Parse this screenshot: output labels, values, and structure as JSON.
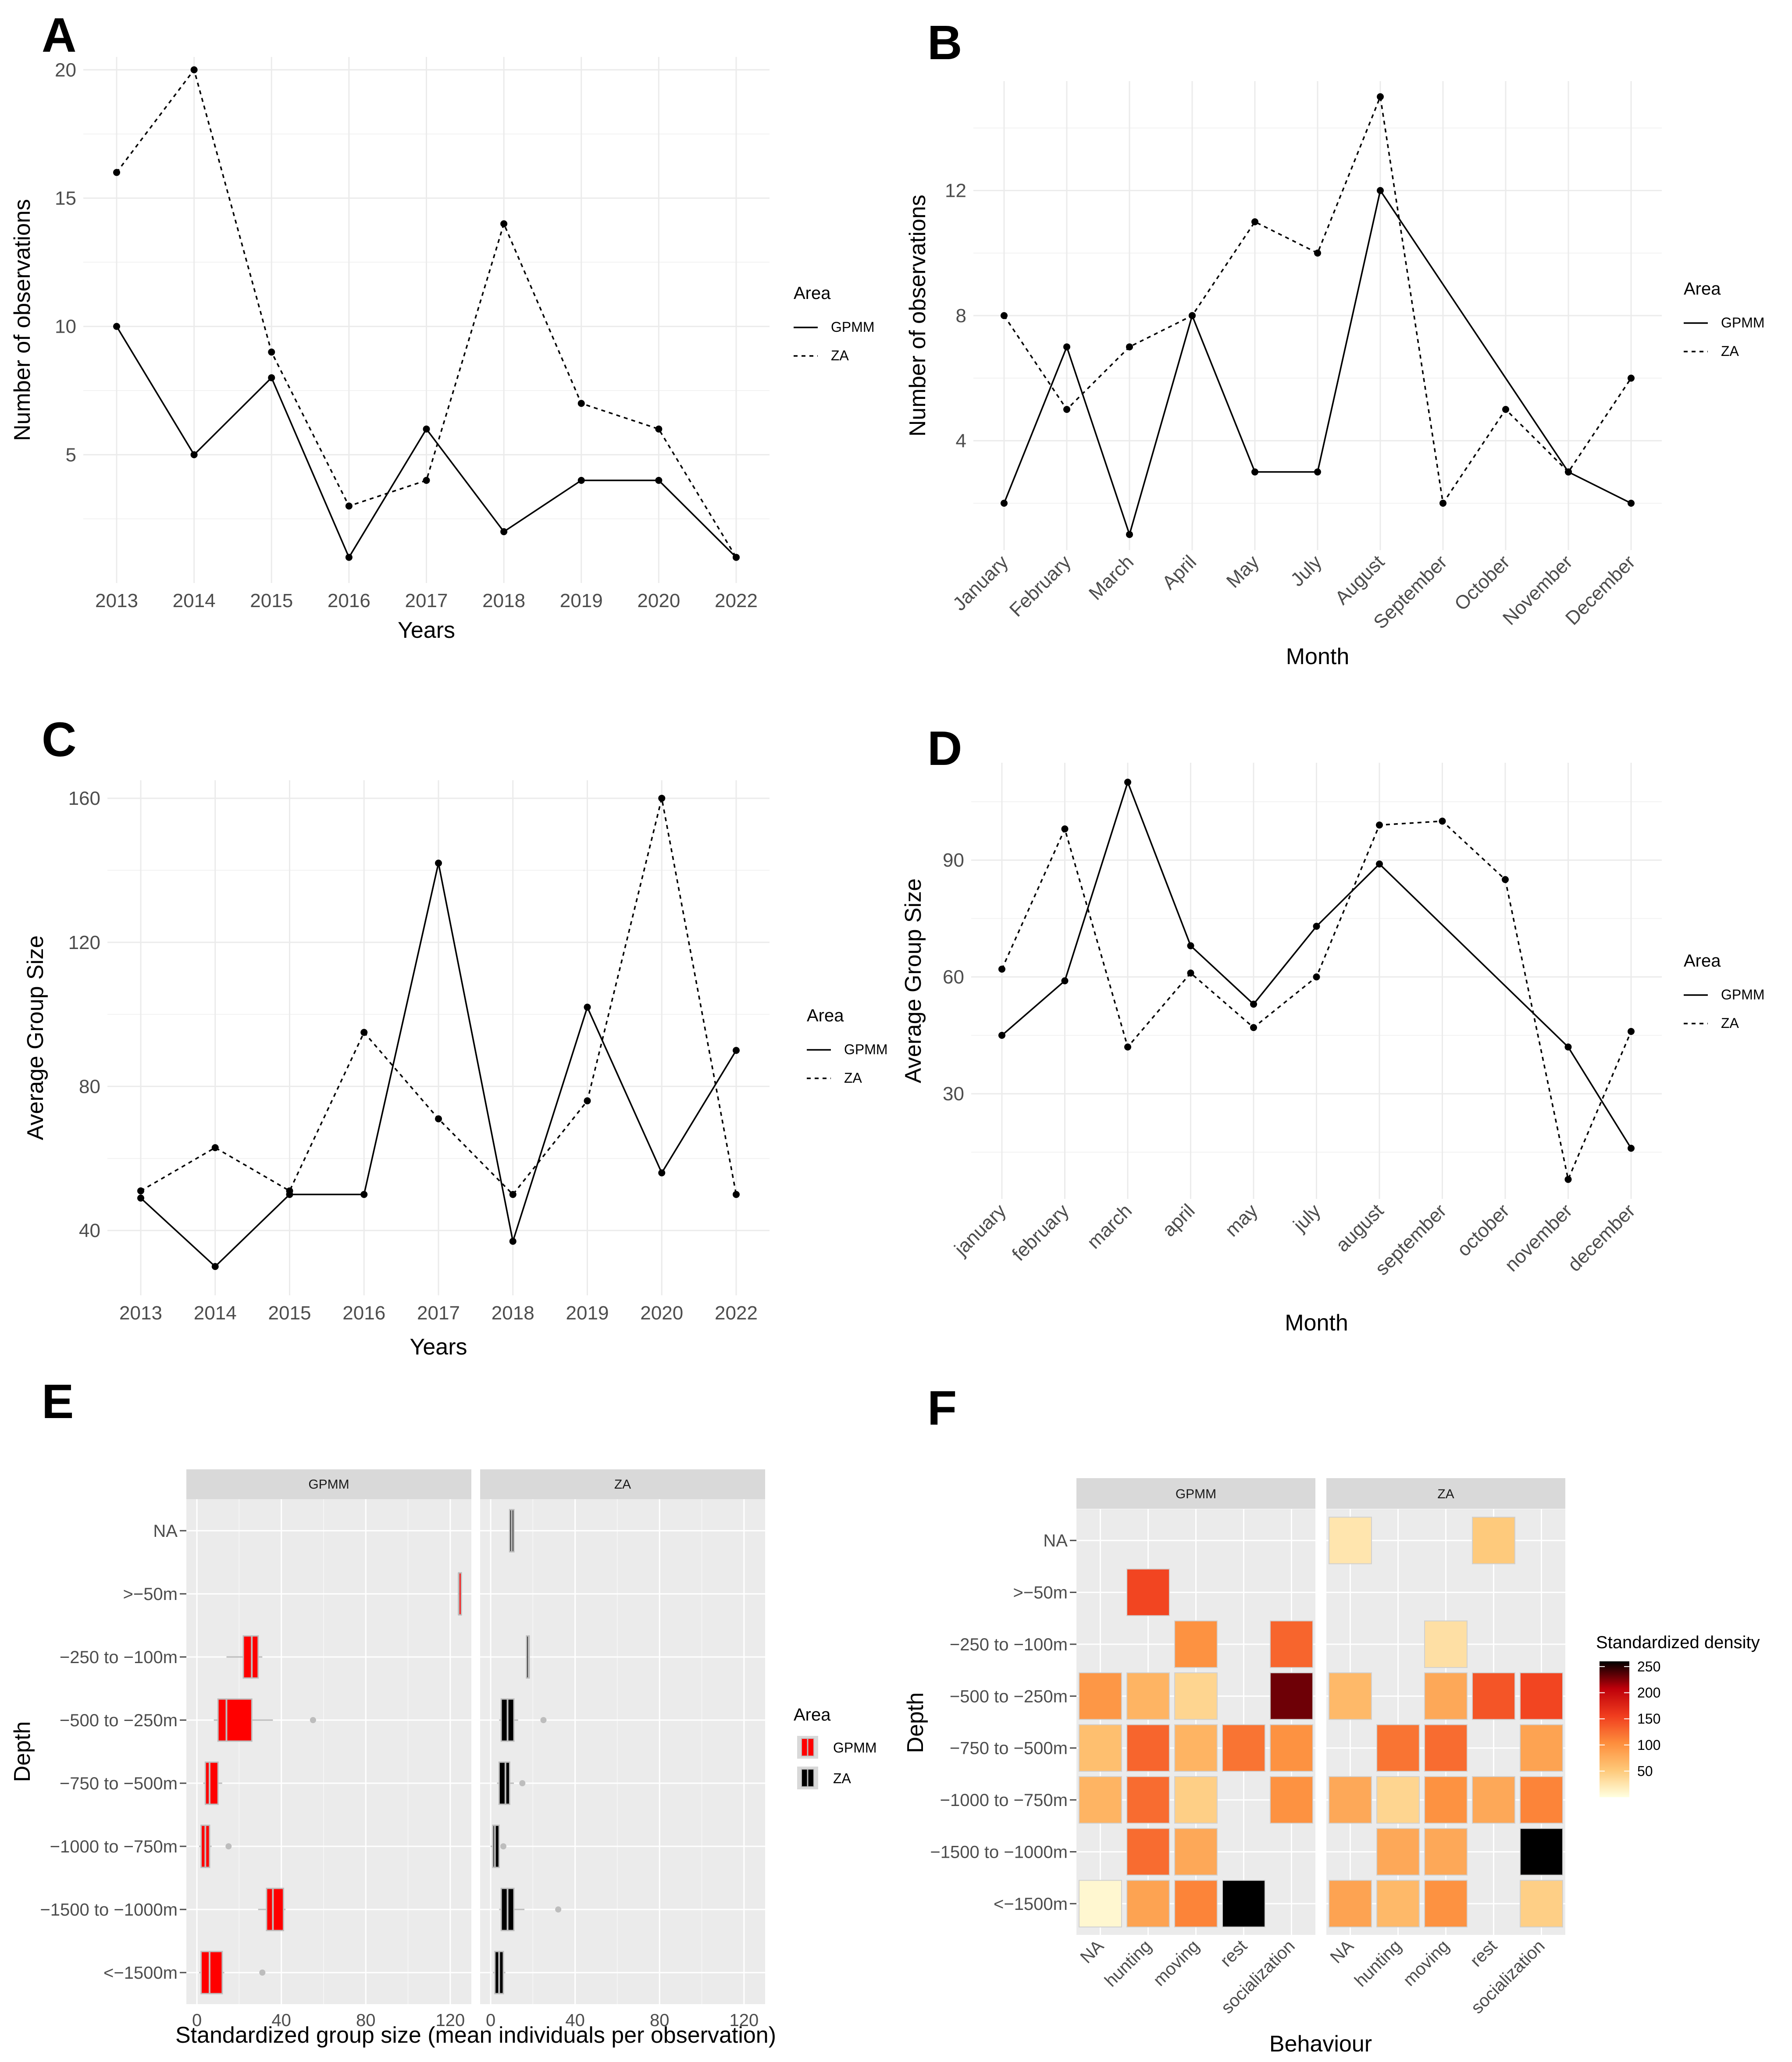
{
  "colors": {
    "gpmm_fill": "#ff0000",
    "za_fill": "#000000",
    "outlier": "#bdbdbd",
    "heat_low": "#fffde0",
    "heat_high": "#000000"
  },
  "chart_data": [
    {
      "panel": "A",
      "type": "line",
      "xlabel": "Years",
      "ylabel": "Number of observations",
      "categories": [
        "2013",
        "2014",
        "2015",
        "2016",
        "2017",
        "2018",
        "2019",
        "2020",
        "2022"
      ],
      "ylim": [
        0,
        20.5
      ],
      "yticks": [
        5,
        10,
        15,
        20
      ],
      "legend": {
        "title": "Area",
        "position": "right"
      },
      "series": [
        {
          "name": "GPMM",
          "line": "solid",
          "values": [
            10,
            5,
            8,
            1,
            6,
            2,
            4,
            4,
            1
          ]
        },
        {
          "name": "ZA",
          "line": "dashed",
          "values": [
            16,
            20,
            9,
            3,
            4,
            14,
            7,
            6,
            1
          ]
        }
      ]
    },
    {
      "panel": "B",
      "type": "line",
      "xlabel": "Month",
      "ylabel": "Number of observations",
      "categories": [
        "January",
        "February",
        "March",
        "April",
        "May",
        "July",
        "August",
        "September",
        "October",
        "November",
        "December"
      ],
      "ylim": [
        0.5,
        15.5
      ],
      "yticks": [
        4,
        8,
        12
      ],
      "legend": {
        "title": "Area",
        "position": "right"
      },
      "series": [
        {
          "name": "GPMM",
          "line": "solid",
          "values": [
            2,
            7,
            1,
            8,
            3,
            3,
            12,
            null,
            null,
            3,
            2
          ]
        },
        {
          "name": "ZA",
          "line": "dashed",
          "values": [
            8,
            5,
            7,
            8,
            11,
            10,
            15,
            2,
            5,
            3,
            6
          ]
        }
      ]
    },
    {
      "panel": "C",
      "type": "line",
      "xlabel": "Years",
      "ylabel": "Average Group Size",
      "categories": [
        "2013",
        "2014",
        "2015",
        "2016",
        "2017",
        "2018",
        "2019",
        "2020",
        "2022"
      ],
      "ylim": [
        22,
        165
      ],
      "yticks": [
        40,
        80,
        120,
        160
      ],
      "legend": {
        "title": "Area",
        "position": "right"
      },
      "series": [
        {
          "name": "GPMM",
          "line": "solid",
          "values": [
            49,
            30,
            50,
            50,
            142,
            37,
            102,
            56,
            90
          ]
        },
        {
          "name": "ZA",
          "line": "dashed",
          "values": [
            51,
            63,
            51,
            95,
            71,
            50,
            76,
            160,
            50
          ]
        }
      ]
    },
    {
      "panel": "D",
      "type": "line",
      "xlabel": "Month",
      "ylabel": "Average Group Size",
      "categories": [
        "january",
        "february",
        "march",
        "april",
        "may",
        "july",
        "august",
        "september",
        "october",
        "november",
        "december"
      ],
      "ylim": [
        3,
        115
      ],
      "yticks": [
        30,
        60,
        90
      ],
      "legend": {
        "title": "Area",
        "position": "right"
      },
      "series": [
        {
          "name": "GPMM",
          "line": "solid",
          "values": [
            45,
            59,
            110,
            68,
            53,
            73,
            89,
            null,
            null,
            42,
            16
          ]
        },
        {
          "name": "ZA",
          "line": "dashed",
          "values": [
            62,
            98,
            42,
            61,
            47,
            60,
            99,
            100,
            85,
            8,
            46
          ]
        }
      ]
    },
    {
      "panel": "E",
      "type": "box",
      "xlabel": "Standardized group size (mean individuals per observation)",
      "ylabel": "Depth",
      "facets": [
        "GPMM",
        "ZA"
      ],
      "categories": [
        "NA",
        ">−50m",
        "−250 to −100m",
        "−500 to −250m",
        "−750 to −500m",
        "−1000 to −750m",
        "−1500 to −1000m",
        "<−1500m"
      ],
      "xlim": [
        -5,
        130
      ],
      "xticks": [
        0,
        40,
        80,
        120
      ],
      "legend": {
        "title": "Area",
        "position": "right",
        "entries": [
          "GPMM",
          "ZA"
        ]
      },
      "series": [
        {
          "name": "GPMM",
          "boxes": [
            null,
            {
              "q1": 124,
              "median": 124,
              "q3": 124,
              "lo": 124,
              "hi": 124,
              "out": []
            },
            {
              "q1": 22,
              "median": 26,
              "q3": 29,
              "lo": 14,
              "hi": 31,
              "out": []
            },
            {
              "q1": 10,
              "median": 14,
              "q3": 26,
              "lo": 8,
              "hi": 36,
              "out": [
                55
              ]
            },
            {
              "q1": 4,
              "median": 6,
              "q3": 10,
              "lo": 3,
              "hi": 12,
              "out": []
            },
            {
              "q1": 2,
              "median": 4,
              "q3": 6,
              "lo": 1,
              "hi": 7,
              "out": [
                15
              ]
            },
            {
              "q1": 33,
              "median": 36,
              "q3": 41,
              "lo": 29,
              "hi": 42,
              "out": []
            },
            {
              "q1": 2,
              "median": 6,
              "q3": 12,
              "lo": 1,
              "hi": 13,
              "out": [
                31
              ]
            }
          ]
        },
        {
          "name": "ZA",
          "boxes": [
            {
              "q1": 9,
              "median": 10,
              "q3": 11,
              "lo": 9,
              "hi": 11,
              "out": []
            },
            null,
            {
              "q1": 17,
              "median": 18,
              "q3": 18,
              "lo": 17,
              "hi": 18,
              "out": []
            },
            {
              "q1": 5,
              "median": 8,
              "q3": 11,
              "lo": 4,
              "hi": 13,
              "out": [
                25
              ]
            },
            {
              "q1": 4,
              "median": 7,
              "q3": 9,
              "lo": 3,
              "hi": 11,
              "out": [
                15
              ]
            },
            {
              "q1": 1,
              "median": 2,
              "q3": 4,
              "lo": 0,
              "hi": 4,
              "out": [
                6
              ]
            },
            {
              "q1": 5,
              "median": 8,
              "q3": 11,
              "lo": 4,
              "hi": 16,
              "out": [
                32
              ]
            },
            {
              "q1": 2,
              "median": 4,
              "q3": 6,
              "lo": 1,
              "hi": 7,
              "out": []
            }
          ]
        }
      ]
    },
    {
      "panel": "F",
      "type": "heatmap",
      "xlabel": "Behaviour",
      "ylabel": "Depth",
      "facets": [
        "GPMM",
        "ZA"
      ],
      "x": [
        "NA",
        "hunting",
        "moving",
        "rest",
        "socialization"
      ],
      "y": [
        "NA",
        ">−50m",
        "−250 to −100m",
        "−500 to −250m",
        "−750 to −500m",
        "−1000 to −750m",
        "−1500 to −1000m",
        "<−1500m"
      ],
      "legend": {
        "title": "Standardized density",
        "position": "right",
        "ticks": [
          50,
          100,
          150,
          200,
          250
        ],
        "range": [
          0,
          260
        ]
      },
      "values": {
        "GPMM": [
          [
            null,
            null,
            null,
            null,
            null
          ],
          [
            null,
            150,
            null,
            null,
            null
          ],
          [
            null,
            null,
            100,
            null,
            130
          ],
          [
            95,
            70,
            40,
            null,
            230
          ],
          [
            60,
            130,
            70,
            120,
            100
          ],
          [
            70,
            125,
            45,
            null,
            100
          ],
          [
            null,
            125,
            80,
            null,
            null
          ],
          [
            8,
            85,
            110,
            260,
            null
          ]
        ],
        "ZA": [
          [
            25,
            null,
            null,
            50,
            null
          ],
          [
            null,
            null,
            null,
            null,
            null
          ],
          [
            null,
            null,
            30,
            null,
            null
          ],
          [
            65,
            null,
            80,
            140,
            150
          ],
          [
            null,
            120,
            125,
            null,
            85
          ],
          [
            80,
            40,
            100,
            80,
            110
          ],
          [
            null,
            80,
            80,
            null,
            262
          ],
          [
            85,
            65,
            100,
            null,
            45
          ]
        ]
      }
    }
  ]
}
